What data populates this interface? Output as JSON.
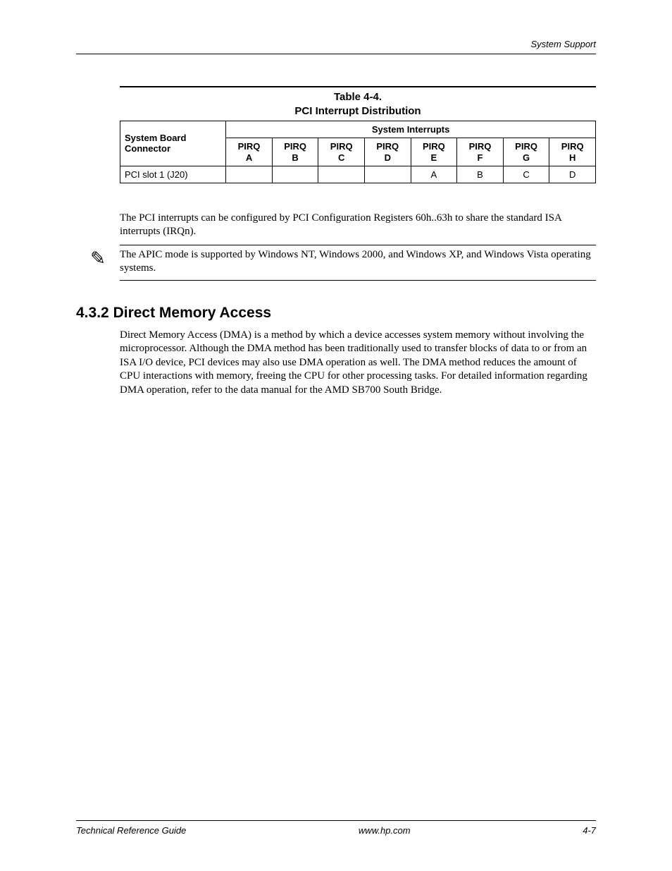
{
  "header": {
    "section_name": "System Support"
  },
  "table": {
    "number": "Table 4-4.",
    "title": "PCI Interrupt Distribution",
    "spanning_header": "System Interrupts",
    "row_header": {
      "line1": "System Board",
      "line2": "Connector"
    },
    "columns": [
      {
        "l1": "PIRQ",
        "l2": "A"
      },
      {
        "l1": "PIRQ",
        "l2": "B"
      },
      {
        "l1": "PIRQ",
        "l2": "C"
      },
      {
        "l1": "PIRQ",
        "l2": "D"
      },
      {
        "l1": "PIRQ",
        "l2": "E"
      },
      {
        "l1": "PIRQ",
        "l2": "F"
      },
      {
        "l1": "PIRQ",
        "l2": "G"
      },
      {
        "l1": "PIRQ",
        "l2": "H"
      }
    ],
    "row": {
      "label": "PCI slot 1 (J20)",
      "cells": [
        "",
        "",
        "",
        "",
        "A",
        "B",
        "C",
        "D"
      ]
    },
    "border_color": "#000000",
    "header_font_family": "Arial",
    "body_font_family": "Arial",
    "font_size_pt": 10
  },
  "paragraph1": "The PCI interrupts can be configured by PCI Configuration Registers 60h..63h to share the standard ISA interrupts (IRQn).",
  "note": {
    "icon": "✎",
    "text": "The APIC mode is supported by Windows NT, Windows 2000, and Windows XP, and Windows Vista operating systems."
  },
  "section": {
    "number": "4.3.2",
    "title": "Direct Memory Access",
    "body": "Direct Memory Access (DMA) is a method by which a device accesses system memory without involving the microprocessor. Although the DMA method has been traditionally used to transfer blocks of data to or from an ISA I/O device, PCI devices may also use DMA operation as well. The DMA method reduces the amount of CPU interactions with memory, freeing the CPU for other processing tasks. For detailed information regarding DMA operation, refer to the data manual for the AMD SB700 South Bridge."
  },
  "footer": {
    "left": "Technical Reference Guide",
    "center": "www.hp.com",
    "right": "4-7"
  },
  "colors": {
    "text": "#000000",
    "background": "#ffffff",
    "rule": "#000000"
  }
}
